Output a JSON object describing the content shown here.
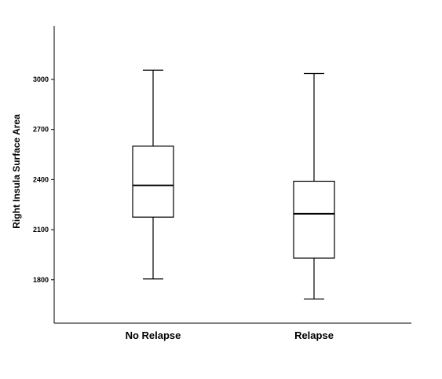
{
  "chart_data": {
    "type": "boxplot",
    "title": "",
    "xlabel": "",
    "ylabel": "Right Insula Surface Area",
    "ylim": [
      1540,
      3320
    ],
    "yticks": [
      1800,
      2100,
      2400,
      2700,
      3000
    ],
    "grid": false,
    "categories": [
      "No Relapse",
      "Relapse"
    ],
    "boxes": [
      {
        "category": "No Relapse",
        "min": 1805,
        "q1": 2175,
        "median": 2365,
        "q3": 2600,
        "max": 3055
      },
      {
        "category": "Relapse",
        "min": 1685,
        "q1": 1930,
        "median": 2195,
        "q3": 2390,
        "max": 3035
      }
    ]
  }
}
